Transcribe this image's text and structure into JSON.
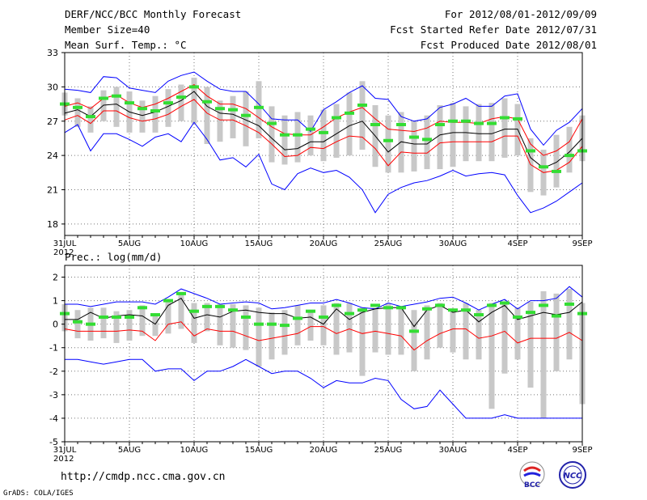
{
  "header": {
    "title": "DERF/NCC/BCC Monthly Forecast",
    "member": "Member Size=40",
    "variable": "Mean Surf. Temp.: °C",
    "period": "For 2012/08/01-2012/09/09",
    "started": "Fcst Started Refer Date 2012/07/31",
    "produced": "Fcst Produced Date 2012/08/01"
  },
  "footer": {
    "url": "http://cmdp.ncc.cma.gov.cn",
    "grads": "GrADS: COLA/IGES",
    "logo_bcc": "BCC",
    "logo_ncc": "NCC"
  },
  "colors": {
    "mean": "#000000",
    "upper": "#0000ff",
    "band": "#ff0000",
    "box": "#c8c8c8",
    "median": "#33dd33",
    "grid": "#777777"
  },
  "chart_data": [
    {
      "type": "line",
      "title": "Mean Surf. Temp.: °C",
      "x_labels": [
        "31JUL",
        "5AUG",
        "10AUG",
        "15AUG",
        "20AUG",
        "25AUG",
        "30AUG",
        "4SEP",
        "9SEP"
      ],
      "x_label_idx": [
        0,
        5,
        10,
        15,
        20,
        25,
        30,
        35,
        40
      ],
      "x_year": "2012",
      "ylim": [
        17,
        33
      ],
      "yticks": [
        18,
        21,
        24,
        27,
        30,
        33
      ],
      "series": [
        {
          "name": "max",
          "color": "#0000ff",
          "values": [
            29.8,
            29.7,
            29.5,
            30.9,
            30.8,
            29.9,
            29.7,
            29.5,
            30.5,
            31.0,
            31.3,
            30.5,
            29.8,
            29.6,
            29.6,
            28.5,
            27.2,
            27.1,
            27.1,
            26.1,
            28.0,
            28.7,
            29.5,
            30.1,
            29.0,
            28.9,
            27.4,
            27.0,
            27.2,
            28.2,
            28.5,
            29.0,
            28.3,
            28.3,
            29.2,
            29.4,
            26.3,
            24.9,
            26.2,
            26.9,
            28.1
          ]
        },
        {
          "name": "upper",
          "color": "#ff0000",
          "values": [
            28.3,
            28.6,
            28.1,
            29.0,
            29.3,
            28.6,
            28.2,
            28.5,
            29.0,
            29.6,
            30.2,
            29.2,
            28.5,
            28.5,
            28.1,
            27.3,
            26.5,
            25.9,
            25.8,
            25.8,
            26.5,
            27.3,
            27.8,
            28.2,
            27.2,
            26.3,
            26.2,
            26.1,
            26.4,
            27.0,
            26.9,
            26.9,
            26.8,
            27.2,
            27.4,
            27.2,
            25.0,
            24.0,
            24.4,
            25.2,
            27.2
          ]
        },
        {
          "name": "mean",
          "color": "#000000",
          "values": [
            27.7,
            28.0,
            27.4,
            28.4,
            28.5,
            27.8,
            27.5,
            27.8,
            28.3,
            28.8,
            29.6,
            28.3,
            27.7,
            27.6,
            27.1,
            26.6,
            25.5,
            24.5,
            24.6,
            25.2,
            25.2,
            25.9,
            26.6,
            27.0,
            25.7,
            24.3,
            25.2,
            25.0,
            25.0,
            25.8,
            26.0,
            26.0,
            25.9,
            25.9,
            26.3,
            26.3,
            23.8,
            22.9,
            23.4,
            24.3,
            25.5
          ]
        },
        {
          "name": "lower",
          "color": "#ff0000",
          "values": [
            27.1,
            27.5,
            26.8,
            27.9,
            27.9,
            27.3,
            27.0,
            27.2,
            27.6,
            28.3,
            28.9,
            27.7,
            27.1,
            27.1,
            26.6,
            26.0,
            25.0,
            23.9,
            24.0,
            24.7,
            24.6,
            25.2,
            25.7,
            25.6,
            24.6,
            23.1,
            24.3,
            24.2,
            24.2,
            25.1,
            25.2,
            25.2,
            25.2,
            25.2,
            25.7,
            25.7,
            23.2,
            22.5,
            22.7,
            23.4,
            24.8
          ]
        },
        {
          "name": "min",
          "color": "#0000ff",
          "values": [
            26.0,
            26.7,
            24.4,
            25.9,
            25.9,
            25.4,
            24.8,
            25.6,
            25.9,
            25.2,
            26.9,
            25.4,
            23.6,
            23.8,
            23.0,
            24.1,
            21.5,
            21.0,
            22.4,
            22.9,
            22.5,
            22.7,
            22.1,
            21.0,
            19.0,
            20.6,
            21.2,
            21.6,
            21.8,
            22.2,
            22.7,
            22.2,
            22.4,
            22.5,
            22.3,
            20.5,
            19.0,
            19.4,
            20.0,
            20.8,
            21.6
          ]
        },
        {
          "name": "median",
          "color": "#33dd33",
          "values": [
            28.5,
            28.2,
            27.4,
            29.0,
            29.2,
            28.6,
            28.1,
            27.9,
            28.6,
            29.1,
            30.0,
            28.7,
            28.1,
            28.0,
            27.5,
            28.2,
            26.8,
            25.8,
            25.8,
            26.3,
            26.0,
            27.3,
            27.7,
            28.4,
            26.7,
            25.3,
            26.7,
            25.6,
            25.4,
            26.7,
            27.0,
            27.0,
            26.8,
            26.8,
            27.3,
            27.2,
            24.4,
            23.0,
            22.6,
            24.0,
            24.4
          ]
        }
      ],
      "boxes": {
        "low": [
          27.5,
          26.5,
          26.0,
          27.0,
          26.5,
          26.0,
          26.0,
          26.0,
          26.5,
          27.0,
          26.8,
          25.0,
          25.2,
          25.5,
          24.8,
          25.5,
          23.4,
          23.2,
          23.4,
          24.0,
          23.5,
          23.8,
          24.0,
          24.5,
          23.0,
          22.5,
          22.5,
          22.6,
          22.8,
          22.8,
          23.0,
          23.5,
          23.5,
          23.5,
          23.8,
          24.0,
          20.8,
          20.5,
          21.2,
          22.5,
          23.5
        ],
        "high": [
          29.5,
          29.0,
          28.3,
          29.7,
          30.0,
          29.6,
          28.8,
          29.2,
          29.8,
          30.2,
          30.8,
          30.0,
          28.8,
          29.2,
          29.6,
          30.5,
          28.3,
          27.5,
          27.8,
          27.5,
          28.0,
          28.5,
          29.5,
          30.5,
          28.4,
          27.5,
          27.8,
          27.0,
          27.5,
          28.4,
          28.6,
          28.3,
          28.5,
          28.6,
          29.0,
          28.5,
          25.5,
          24.5,
          25.8,
          26.5,
          27.5
        ]
      }
    },
    {
      "type": "line",
      "title": "Prec.: log(mm/d)",
      "x_labels": [
        "31JUL",
        "5AUG",
        "10AUG",
        "15AUG",
        "20AUG",
        "25AUG",
        "30AUG",
        "4SEP",
        "9SEP"
      ],
      "x_label_idx": [
        0,
        5,
        10,
        15,
        20,
        25,
        30,
        35,
        40
      ],
      "x_year": "2012",
      "ylim": [
        -5,
        2.5
      ],
      "yticks": [
        -5,
        -4,
        -3,
        -2,
        -1,
        0,
        1,
        2
      ],
      "series": [
        {
          "name": "max",
          "color": "#0000ff",
          "values": [
            0.85,
            0.85,
            0.75,
            0.85,
            0.95,
            0.95,
            0.95,
            0.85,
            1.15,
            1.5,
            1.3,
            1.1,
            0.85,
            0.9,
            0.95,
            0.9,
            0.65,
            0.7,
            0.8,
            0.9,
            0.9,
            1.05,
            0.9,
            0.7,
            0.65,
            0.9,
            0.75,
            0.85,
            0.95,
            1.1,
            1.15,
            0.9,
            0.6,
            0.85,
            1.05,
            0.65,
            1.0,
            1.0,
            1.1,
            1.6,
            1.15
          ]
        },
        {
          "name": "mean",
          "color": "#000000",
          "values": [
            0.2,
            0.2,
            0.5,
            0.25,
            0.35,
            0.4,
            0.35,
            0.0,
            0.8,
            1.1,
            0.25,
            0.4,
            0.3,
            0.55,
            0.6,
            0.5,
            0.45,
            0.45,
            0.25,
            0.3,
            0.0,
            0.65,
            0.2,
            0.5,
            0.65,
            0.7,
            0.7,
            -0.1,
            0.6,
            0.8,
            0.5,
            0.6,
            0.1,
            0.5,
            0.8,
            0.2,
            0.35,
            0.5,
            0.4,
            0.5,
            0.95
          ]
        },
        {
          "name": "lower",
          "color": "#ff0000",
          "values": [
            -0.2,
            -0.3,
            -0.3,
            -0.3,
            -0.3,
            -0.25,
            -0.3,
            -0.7,
            0.0,
            0.1,
            -0.5,
            -0.2,
            -0.3,
            -0.3,
            -0.5,
            -0.7,
            -0.6,
            -0.5,
            -0.4,
            -0.1,
            -0.1,
            -0.4,
            -0.2,
            -0.4,
            -0.3,
            -0.4,
            -0.5,
            -1.1,
            -0.7,
            -0.4,
            -0.2,
            -0.2,
            -0.6,
            -0.5,
            -0.3,
            -0.8,
            -0.6,
            -0.6,
            -0.6,
            -0.35,
            -0.7
          ]
        },
        {
          "name": "min",
          "color": "#0000ff",
          "values": [
            -1.5,
            -1.5,
            -1.6,
            -1.7,
            -1.6,
            -1.5,
            -1.5,
            -2.0,
            -1.9,
            -1.9,
            -2.4,
            -2.0,
            -2.0,
            -1.8,
            -1.5,
            -1.8,
            -2.1,
            -2.0,
            -2.0,
            -2.3,
            -2.7,
            -2.4,
            -2.5,
            -2.5,
            -2.3,
            -2.4,
            -3.2,
            -3.6,
            -3.5,
            -2.8,
            -3.4,
            -4.0,
            -4.0,
            -4.0,
            -3.85,
            -4.0,
            -4.0,
            -4.0,
            -4.0,
            -4.0,
            -4.0
          ]
        },
        {
          "name": "median",
          "color": "#33dd33",
          "values": [
            0.45,
            0.1,
            0.0,
            0.3,
            0.3,
            0.3,
            0.7,
            0.4,
            1.0,
            1.3,
            0.55,
            0.75,
            0.75,
            0.6,
            0.3,
            0.0,
            0.0,
            -0.05,
            0.25,
            0.55,
            0.3,
            0.8,
            0.45,
            0.6,
            0.8,
            0.7,
            0.7,
            -0.3,
            0.65,
            0.8,
            0.6,
            0.6,
            0.4,
            0.8,
            0.9,
            0.3,
            0.5,
            0.8,
            0.35,
            0.85,
            0.45
          ]
        }
      ],
      "boxes": {
        "low": [
          -0.3,
          -0.6,
          -0.7,
          -0.6,
          -0.8,
          -0.7,
          -0.5,
          -0.5,
          -0.4,
          -0.2,
          -0.8,
          -0.3,
          -0.9,
          -1.0,
          -1.1,
          -1.8,
          -1.5,
          -1.3,
          -0.9,
          -0.7,
          -0.9,
          -1.3,
          -1.2,
          -2.2,
          -1.2,
          -1.3,
          -1.3,
          -2.0,
          -1.5,
          -1.0,
          -1.2,
          -1.5,
          -1.5,
          -3.6,
          -2.1,
          -1.5,
          -2.7,
          -4.0,
          -2.0,
          -1.5,
          -3.4
        ],
        "high": [
          0.85,
          0.6,
          0.7,
          0.7,
          0.55,
          0.6,
          0.8,
          0.4,
          1.05,
          1.3,
          0.9,
          0.9,
          0.85,
          0.85,
          0.8,
          0.7,
          0.5,
          0.6,
          0.8,
          0.6,
          0.8,
          0.9,
          0.9,
          0.7,
          0.7,
          0.9,
          0.75,
          0.6,
          0.8,
          0.9,
          0.6,
          0.9,
          0.6,
          0.9,
          0.95,
          0.7,
          0.95,
          1.4,
          1.3,
          1.5,
          0.9
        ]
      }
    }
  ]
}
